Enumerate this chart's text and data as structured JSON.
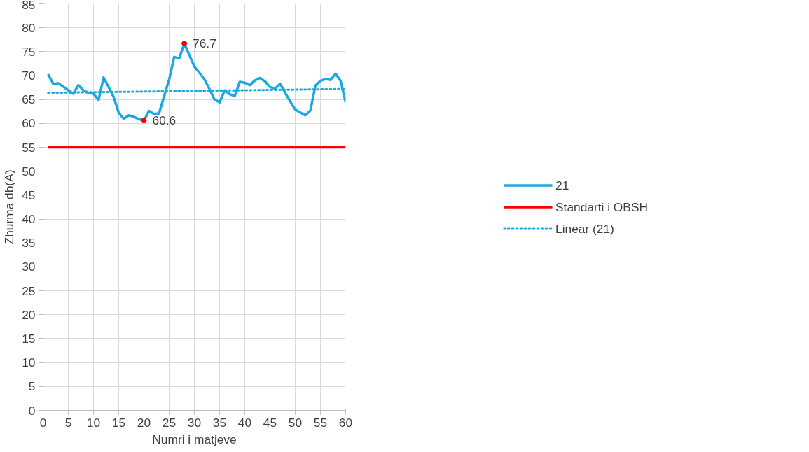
{
  "chart_data": {
    "type": "line",
    "xlabel": "Numri i matjeve",
    "ylabel": "Zhurma db(A)",
    "xlim": [
      0,
      60
    ],
    "ylim": [
      0,
      85
    ],
    "xticks": [
      0,
      5,
      10,
      15,
      20,
      25,
      30,
      35,
      40,
      45,
      50,
      55,
      60
    ],
    "yticks": [
      0,
      5,
      10,
      15,
      20,
      25,
      30,
      35,
      40,
      45,
      50,
      55,
      60,
      65,
      70,
      75,
      80,
      85
    ],
    "grid": true,
    "legend": "right",
    "marker": "none",
    "series": [
      {
        "name": "21",
        "color": "#1ba8e0",
        "line_style": "solid",
        "x": [
          1,
          2,
          3,
          4,
          5,
          6,
          7,
          8,
          9,
          10,
          11,
          12,
          13,
          14,
          15,
          16,
          17,
          18,
          19,
          20,
          21,
          22,
          23,
          24,
          25,
          26,
          27,
          28,
          29,
          30,
          31,
          32,
          33,
          34,
          35,
          36,
          37,
          38,
          39,
          40,
          41,
          42,
          43,
          44,
          45,
          46,
          47,
          48,
          49,
          50,
          51,
          52,
          53,
          54,
          55,
          56,
          57,
          58,
          59,
          60
        ],
        "values": [
          70.3,
          68.3,
          68.4,
          67.7,
          66.9,
          66.2,
          68.0,
          66.9,
          66.4,
          66.2,
          64.9,
          69.6,
          67.6,
          65.5,
          62.2,
          61.0,
          61.7,
          61.4,
          60.9,
          60.6,
          62.6,
          62.0,
          62.1,
          65.7,
          69.2,
          73.9,
          73.6,
          76.7,
          74.3,
          71.9,
          70.6,
          69.2,
          67.2,
          65.0,
          64.4,
          66.9,
          66.1,
          65.7,
          68.7,
          68.5,
          68.0,
          69.0,
          69.5,
          68.8,
          67.6,
          67.3,
          68.3,
          66.4,
          64.6,
          62.9,
          62.3,
          61.7,
          62.7,
          67.9,
          68.9,
          69.3,
          69.1,
          70.4,
          68.9,
          64.4
        ],
        "value_labels": [
          null,
          null,
          null,
          null,
          null,
          null,
          null,
          null,
          null,
          null,
          null,
          null,
          null,
          null,
          null,
          null,
          null,
          null,
          null,
          "60.6",
          null,
          null,
          null,
          null,
          null,
          null,
          null,
          "76.7",
          null,
          null,
          null,
          null,
          null,
          null,
          null,
          null,
          null,
          null,
          null,
          null,
          null,
          null,
          null,
          null,
          null,
          null,
          null,
          null,
          null,
          null,
          null,
          null,
          null,
          null,
          null,
          null,
          null,
          null,
          null,
          null
        ],
        "colors": [
          null,
          null,
          null,
          null,
          null,
          null,
          null,
          null,
          null,
          null,
          null,
          null,
          null,
          null,
          null,
          null,
          null,
          null,
          null,
          "#ff0000",
          null,
          null,
          null,
          null,
          null,
          null,
          null,
          "#ff0000",
          null,
          null,
          null,
          null,
          null,
          null,
          null,
          null,
          null,
          null,
          null,
          null,
          null,
          null,
          null,
          null,
          null,
          null,
          null,
          null,
          null,
          null,
          null,
          null,
          null,
          null,
          null,
          null,
          null,
          null,
          null,
          null
        ]
      },
      {
        "name": "Standarti i OBSH",
        "color": "#ff0000",
        "line_style": "solid",
        "x": [
          1,
          60
        ],
        "values": [
          55,
          55
        ]
      },
      {
        "name": "Linear (21)",
        "color": "#1ba8e0",
        "line_style": "dotted",
        "x": [
          1,
          60
        ],
        "values": [
          66.4,
          67.2
        ]
      }
    ]
  }
}
